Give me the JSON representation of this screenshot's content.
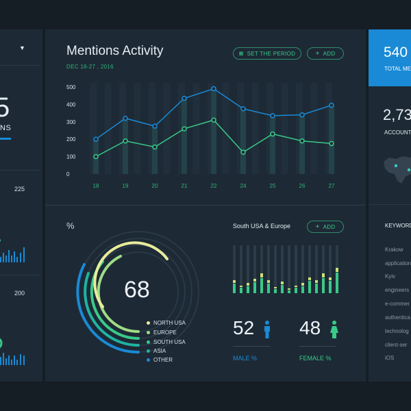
{
  "colors": {
    "background": "#151d25",
    "panel": "#1d2a35",
    "accent_blue": "#1a8ad6",
    "accent_green": "#3ac989",
    "dark_band": "#111820"
  },
  "left_panel": {
    "dropdown_icon": "caret-down-icon",
    "big_number_partial": "5",
    "label_partial": "NS",
    "chart1_value": "225",
    "chart2_value": "200"
  },
  "mentions": {
    "title": "Mentions Activity",
    "date_range": "DEC 18-27 , 2016",
    "set_period_label": "SET THE PERIOD",
    "set_period_icon": "grid-icon",
    "add_label": "ADD",
    "add_icon": "plus-icon"
  },
  "demographics": {
    "percent_symbol": "%",
    "center_value": "68",
    "legend": [
      "NORTH USA",
      "EUROPE",
      "SOUTH USA",
      "ASIA",
      "OTHER"
    ],
    "region_title": "South USA & Europe",
    "add_label": "ADD",
    "male_value": "52",
    "male_label": "MALE  %",
    "male_icon": "male-icon",
    "female_value": "48",
    "female_label": "FEMALE  %",
    "female_icon": "female-icon"
  },
  "right_panel": {
    "total_value": "540",
    "total_label": "TOTAL ME",
    "accounts_value": "2,73",
    "accounts_label": "ACCOUNT",
    "keywords_title": "KEYWORD",
    "keywords": [
      "Krakow",
      "application",
      "Kyiv",
      "engineers",
      "e-commer",
      "authentica",
      "technolog",
      "client-ser",
      "iOS"
    ]
  },
  "chart_data": {
    "type": "line",
    "title": "Mentions Activity",
    "x": [
      18,
      19,
      20,
      21,
      22,
      24,
      25,
      26,
      27
    ],
    "yticks": [
      0,
      100,
      200,
      300,
      400,
      500
    ],
    "ylim": [
      0,
      500
    ],
    "series": [
      {
        "values": [
          200,
          320,
          275,
          435,
          490,
          375,
          335,
          340,
          395
        ]
      },
      {
        "values": [
          100,
          190,
          155,
          260,
          310,
          125,
          230,
          190,
          175
        ]
      }
    ],
    "background_bars": [
      200,
      310,
      270,
      440,
      500,
      380,
      330,
      340,
      395
    ],
    "grid": false
  }
}
